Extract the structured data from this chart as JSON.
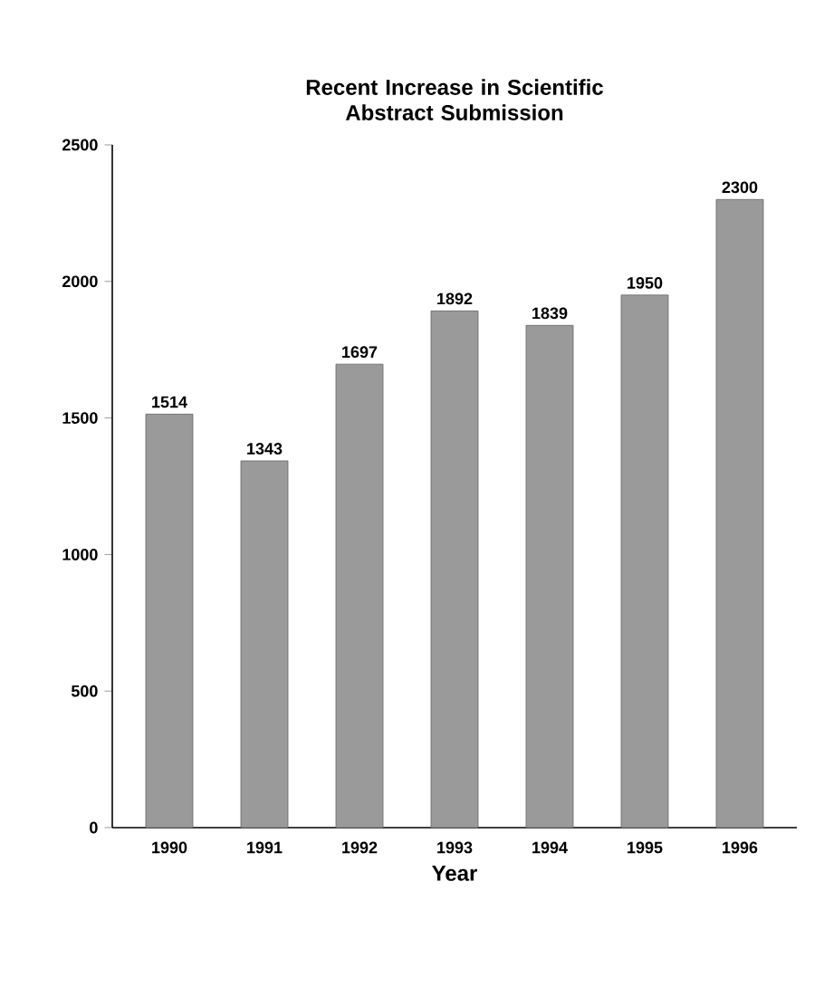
{
  "chart_data": {
    "type": "bar",
    "title": "Recent Increase in Scientific Abstract Submission",
    "xlabel": "Year",
    "categories": [
      "1990",
      "1991",
      "1992",
      "1993",
      "1994",
      "1995",
      "1996"
    ],
    "values": [
      1514,
      1343,
      1697,
      1892,
      1839,
      1950,
      2300
    ],
    "color": "#9a9a9a",
    "ylim": [
      0,
      2500
    ],
    "yticks": [
      0,
      500,
      1000,
      1500,
      2000,
      2500
    ],
    "data_labels": true,
    "grid": false
  }
}
